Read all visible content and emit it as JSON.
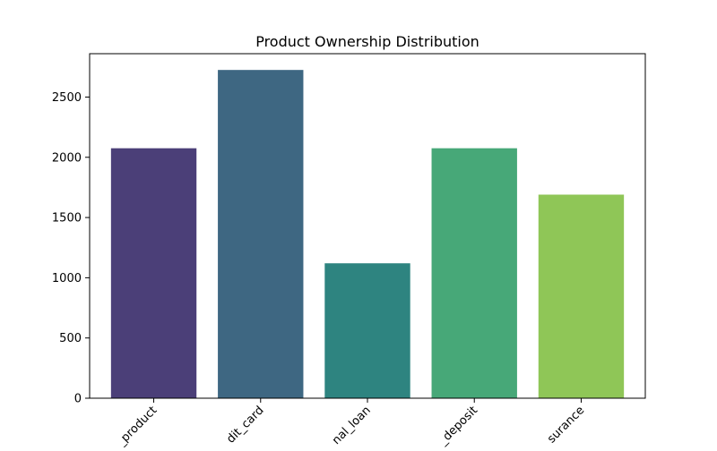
{
  "chart_data": {
    "type": "bar",
    "title": "Product Ownership Distribution",
    "xlabel": "",
    "ylabel": "",
    "categories": [
      "loan_product",
      "credit_card",
      "personal_loan",
      "fixed_deposit",
      "insurance"
    ],
    "tick_labels": [
      "_product",
      "dit_card",
      "nal_loan",
      "_deposit",
      "surance"
    ],
    "values": [
      2075,
      2725,
      1120,
      2075,
      1690
    ],
    "colors": [
      "#4b3f78",
      "#3e6782",
      "#2e8480",
      "#47a878",
      "#8fc657"
    ],
    "ylim": [
      0,
      2860
    ],
    "yticks": [
      0,
      500,
      1000,
      1500,
      2000,
      2500
    ],
    "grid": false,
    "legend": "none"
  }
}
